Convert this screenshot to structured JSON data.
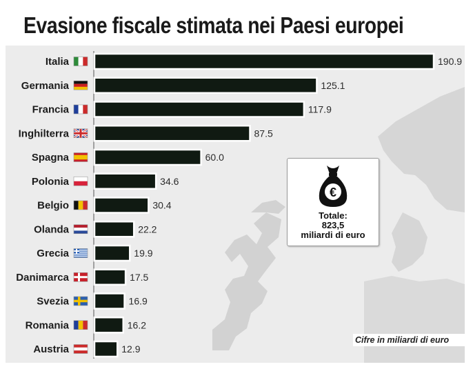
{
  "title": "Evasione fiscale stimata nei Paesi europei",
  "total": {
    "label": "Totale:",
    "value": "823,5",
    "unit": "miliardi di euro",
    "icon": "euro-money-bag-icon"
  },
  "footnote": "Cifre in miliardi di euro",
  "colors": {
    "bar": "#101a12",
    "map_light": "#ececec",
    "map_dark": "#cfcfcf"
  },
  "chart_data": {
    "type": "bar",
    "orientation": "horizontal",
    "categories": [
      "Italia",
      "Germania",
      "Francia",
      "Inghilterra",
      "Spagna",
      "Polonia",
      "Belgio",
      "Olanda",
      "Grecia",
      "Danimarca",
      "Svezia",
      "Romania",
      "Austria"
    ],
    "values": [
      190.9,
      125.1,
      117.9,
      87.5,
      60.0,
      34.6,
      30.4,
      22.2,
      19.9,
      17.5,
      16.9,
      16.2,
      12.9
    ],
    "value_labels": [
      "190.9",
      "125.1",
      "117.9",
      "87.5",
      "60.0",
      "34.6",
      "30.4",
      "22.2",
      "19.9",
      "17.5",
      "16.9",
      "16.2",
      "12.9"
    ],
    "flags": [
      "flag-italy-icon",
      "flag-germany-icon",
      "flag-france-icon",
      "flag-uk-icon",
      "flag-spain-icon",
      "flag-poland-icon",
      "flag-belgium-icon",
      "flag-netherlands-icon",
      "flag-greece-icon",
      "flag-denmark-icon",
      "flag-sweden-icon",
      "flag-romania-icon",
      "flag-austria-icon"
    ],
    "title": "Evasione fiscale stimata nei Paesi europei",
    "xlabel": "",
    "ylabel": "",
    "xlim": [
      0,
      190.9
    ],
    "grid": false,
    "legend": "none"
  }
}
